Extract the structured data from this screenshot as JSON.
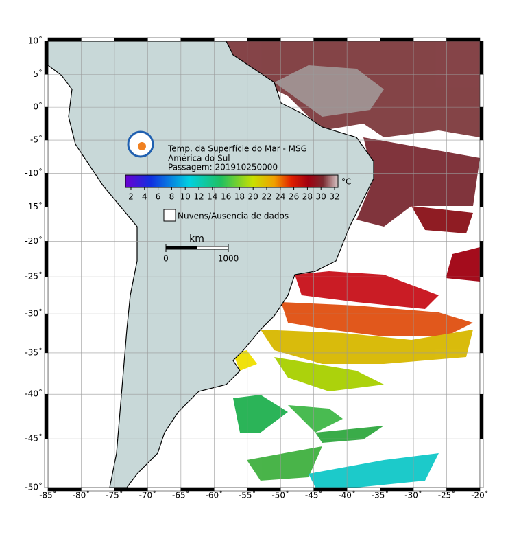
{
  "map": {
    "title_lines": [
      "Temp. da Superfície do Mar - MSG",
      "América do Sul",
      "Passagem: 201910250000"
    ],
    "lon_ticks": [
      {
        "value": -85,
        "label": "-85˚"
      },
      {
        "value": -80,
        "label": "-80˚"
      },
      {
        "value": -75,
        "label": "-75˚"
      },
      {
        "value": -70,
        "label": "-70˚"
      },
      {
        "value": -65,
        "label": "-65˚"
      },
      {
        "value": -60,
        "label": "-60˚"
      },
      {
        "value": -55,
        "label": "-55˚"
      },
      {
        "value": -50,
        "label": "-50˚"
      },
      {
        "value": -45,
        "label": "-45˚"
      },
      {
        "value": -40,
        "label": "-40˚"
      },
      {
        "value": -35,
        "label": "-35˚"
      },
      {
        "value": -30,
        "label": "-30˚"
      },
      {
        "value": -25,
        "label": "-25˚"
      },
      {
        "value": -20,
        "label": "-20˚"
      }
    ],
    "lat_ticks": [
      {
        "value": 10,
        "label": "10˚"
      },
      {
        "value": 5,
        "label": "5˚"
      },
      {
        "value": 0,
        "label": "0˚"
      },
      {
        "value": -5,
        "label": "-5˚"
      },
      {
        "value": -10,
        "label": "-10˚"
      },
      {
        "value": -15,
        "label": "-15˚"
      },
      {
        "value": -20,
        "label": "-20˚"
      },
      {
        "value": -25,
        "label": "-25˚"
      },
      {
        "value": -30,
        "label": "-30˚"
      },
      {
        "value": -35,
        "label": "-35˚"
      },
      {
        "value": -40,
        "label": "-40˚"
      },
      {
        "value": -45,
        "label": "-45˚"
      },
      {
        "value": -50,
        "label": "-50˚"
      }
    ],
    "colorbar": {
      "ticks": [
        2,
        4,
        6,
        8,
        10,
        12,
        14,
        16,
        18,
        20,
        22,
        24,
        26,
        28,
        30,
        32
      ],
      "unit": "°C"
    },
    "legend": "Nuvens/Ausencia de dados",
    "scalebar": {
      "label": "km",
      "ticks": [
        0,
        1000
      ]
    }
  }
}
